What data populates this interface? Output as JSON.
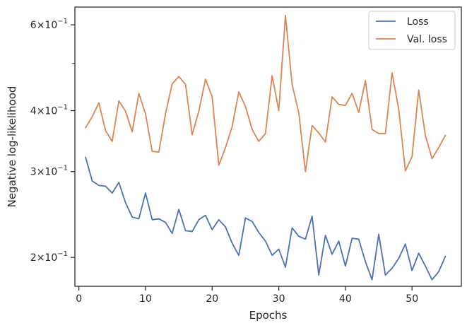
{
  "chart_data": {
    "type": "line",
    "xlabel": "Epochs",
    "ylabel": "Negative log-likelihood",
    "yscale": "log",
    "xlim": [
      -0.6,
      57.4
    ],
    "ylim": [
      0.1745,
      0.6525
    ],
    "x_ticks": [
      0,
      10,
      20,
      30,
      40,
      50
    ],
    "y_major_ticks": [
      0.2,
      0.3,
      0.4,
      0.6
    ],
    "y_minor_ticks": [
      0.5
    ],
    "y_tick_labels": [
      {
        "base": "2×10",
        "exp": "−1"
      },
      {
        "base": "3×10",
        "exp": "−1"
      },
      {
        "base": "4×10",
        "exp": "−1"
      },
      {
        "base": "6×10",
        "exp": "−1"
      }
    ],
    "grid": false,
    "legend_position": "top-right",
    "x": [
      1,
      2,
      3,
      4,
      5,
      6,
      7,
      8,
      9,
      10,
      11,
      12,
      13,
      14,
      15,
      16,
      17,
      18,
      19,
      20,
      21,
      22,
      23,
      24,
      25,
      26,
      27,
      28,
      29,
      30,
      31,
      32,
      33,
      34,
      35,
      36,
      37,
      38,
      39,
      40,
      41,
      42,
      43,
      44,
      45,
      46,
      47,
      48,
      49,
      50,
      51,
      52,
      53,
      54,
      55
    ],
    "series": [
      {
        "name": "Loss",
        "color": "#4c72b0",
        "values": [
          0.321,
          0.287,
          0.281,
          0.28,
          0.271,
          0.285,
          0.259,
          0.242,
          0.24,
          0.271,
          0.239,
          0.24,
          0.236,
          0.224,
          0.251,
          0.227,
          0.226,
          0.239,
          0.244,
          0.228,
          0.239,
          0.231,
          0.214,
          0.202,
          0.241,
          0.237,
          0.225,
          0.216,
          0.202,
          0.208,
          0.191,
          0.23,
          0.221,
          0.218,
          0.243,
          0.184,
          0.222,
          0.203,
          0.216,
          0.192,
          0.219,
          0.218,
          0.196,
          0.18,
          0.223,
          0.184,
          0.19,
          0.199,
          0.213,
          0.188,
          0.204,
          0.192,
          0.18,
          0.187,
          0.201
        ]
      },
      {
        "name": "Val. loss",
        "color": "#dd8452",
        "values": [
          0.369,
          0.389,
          0.415,
          0.364,
          0.346,
          0.419,
          0.399,
          0.362,
          0.434,
          0.394,
          0.33,
          0.329,
          0.394,
          0.454,
          0.47,
          0.453,
          0.357,
          0.399,
          0.464,
          0.427,
          0.309,
          0.336,
          0.371,
          0.437,
          0.408,
          0.366,
          0.346,
          0.359,
          0.472,
          0.4,
          0.627,
          0.453,
          0.396,
          0.3,
          0.373,
          0.36,
          0.345,
          0.427,
          0.412,
          0.41,
          0.434,
          0.397,
          0.461,
          0.366,
          0.359,
          0.359,
          0.478,
          0.403,
          0.301,
          0.322,
          0.441,
          0.356,
          0.319,
          0.336,
          0.356
        ]
      }
    ]
  }
}
